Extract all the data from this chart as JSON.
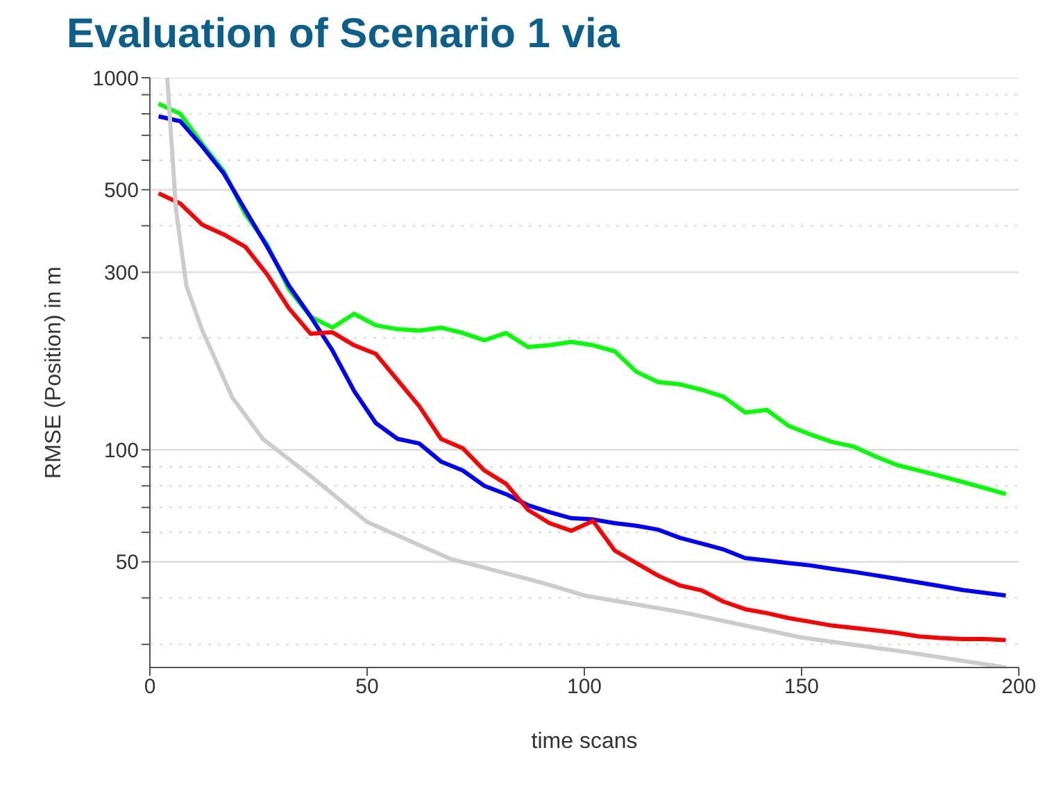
{
  "chart_data": {
    "type": "line",
    "title": "Evaluation of Scenario 1 via",
    "xlabel": "time scans",
    "ylabel": "RMSE (Position) in m",
    "log": "y",
    "grid": "y",
    "xlim": [
      0,
      200
    ],
    "xticks": [
      0,
      50,
      100,
      150,
      200
    ],
    "ylim": [
      26,
      1000
    ],
    "yticks": [
      {
        "value": 30,
        "label": null
      },
      {
        "value": 40,
        "label": null
      },
      50,
      {
        "value": 60,
        "label": null
      },
      {
        "value": 70,
        "label": null
      },
      {
        "value": 80,
        "label": null
      },
      {
        "value": 90,
        "label": null
      },
      100,
      {
        "value": 200,
        "label": null
      },
      300,
      {
        "value": 400,
        "label": null
      },
      500,
      {
        "value": 600,
        "label": null
      },
      {
        "value": 700,
        "label": null
      },
      {
        "value": 800,
        "label": null
      },
      {
        "value": 900,
        "label": null
      },
      1000
    ],
    "x": [
      2,
      7,
      12,
      17,
      22,
      27,
      32,
      37,
      42,
      47,
      52,
      57,
      62,
      67,
      72,
      77,
      82,
      87,
      92,
      97,
      102,
      107,
      112,
      117,
      122,
      127,
      132,
      137,
      142,
      147,
      152,
      157,
      162,
      167,
      172,
      177,
      182,
      187,
      192,
      197
    ],
    "series": [
      {
        "color": "#00ff00",
        "values": [
          851,
          800,
          665,
          561,
          429,
          356,
          270,
          228,
          213,
          232,
          216,
          211,
          209,
          213,
          206,
          197,
          206,
          189,
          191,
          195,
          191,
          184,
          162,
          152,
          150,
          145,
          139,
          126,
          128,
          116,
          110,
          105,
          102,
          96,
          91,
          88,
          85,
          82,
          79,
          76
        ]
      },
      {
        "color": "#0000ff",
        "values": [
          787,
          764,
          655,
          553,
          440,
          351,
          276,
          228,
          185,
          144,
          118,
          107,
          104,
          93,
          88,
          80,
          76,
          71,
          68,
          65.5,
          65,
          63.5,
          62.5,
          61,
          58,
          56,
          54,
          51.2,
          50.4,
          49.6,
          48.9,
          47.9,
          47,
          46,
          45,
          44,
          43,
          42,
          41.3,
          40.6
        ]
      },
      {
        "color": "#ff0000",
        "values": [
          489,
          459,
          403,
          379,
          351,
          296,
          240,
          205,
          207,
          191,
          181,
          154,
          131,
          107,
          101,
          88,
          81,
          69,
          63.5,
          60.6,
          64.4,
          53.6,
          49.6,
          45.9,
          43.2,
          41.9,
          39.1,
          37.3,
          36.4,
          35.3,
          34.5,
          33.7,
          33.2,
          32.7,
          32.2,
          31.5,
          31.2,
          31,
          31,
          30.8
        ]
      },
      {
        "color": "#cccccc",
        "x": [
          4,
          6,
          8.4,
          12,
          19,
          26,
          37,
          50,
          69,
          90,
          100,
          123,
          150,
          175,
          197
        ],
        "values": [
          1000,
          442,
          276,
          210,
          138,
          107,
          85,
          64,
          51,
          44,
          40.6,
          36.5,
          31.3,
          28.5,
          26
        ]
      }
    ]
  }
}
